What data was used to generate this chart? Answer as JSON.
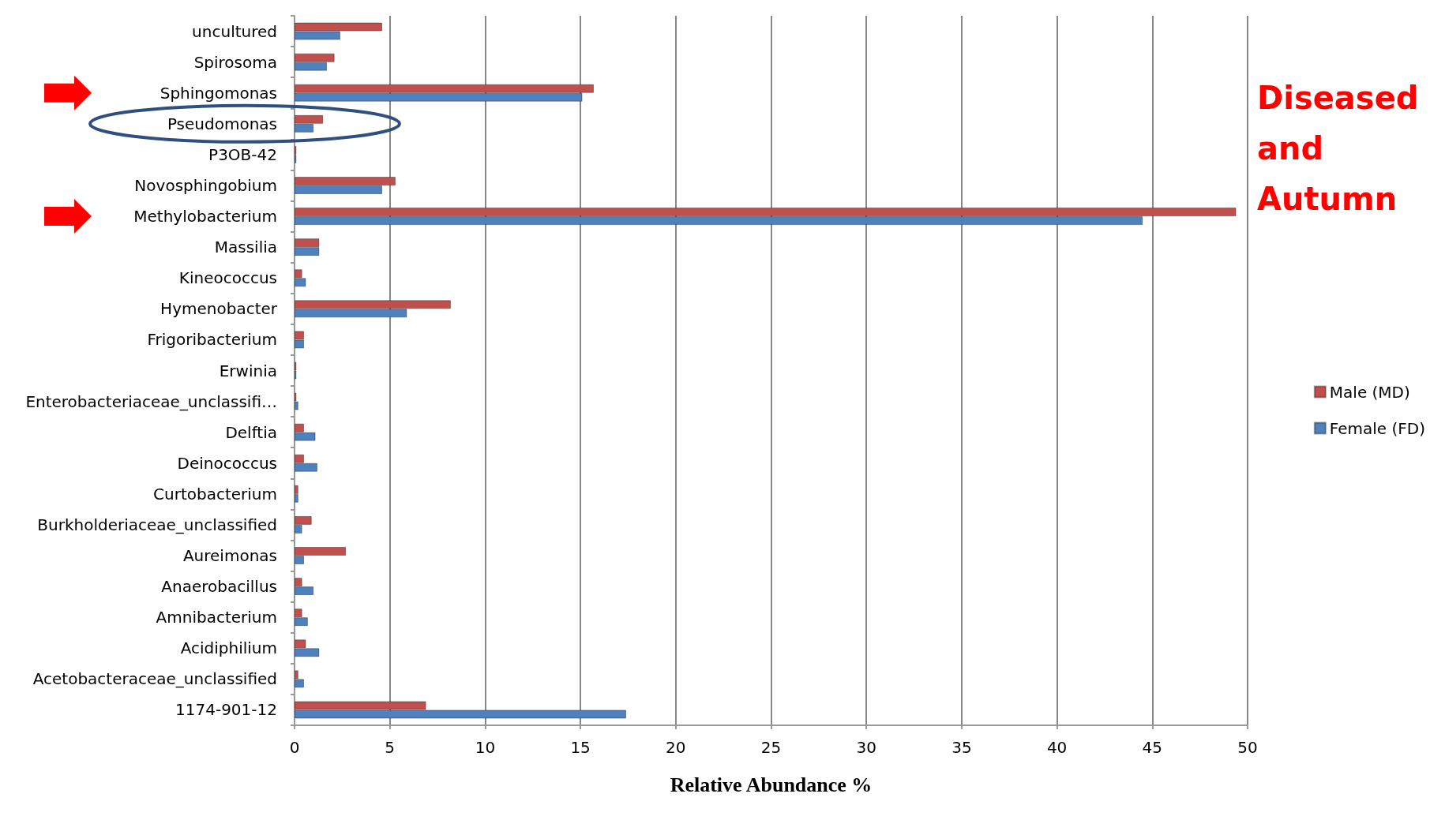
{
  "chart_data": {
    "type": "bar",
    "orientation": "horizontal",
    "xlabel": "Relative Abundance %",
    "categories": [
      "uncultured",
      "Spirosoma",
      "Sphingomonas",
      "Pseudomonas",
      "P3OB-42",
      "Novosphingobium",
      "Methylobacterium",
      "Massilia",
      "Kineococcus",
      "Hymenobacter",
      "Frigoribacterium",
      "Erwinia",
      "Enterobacteriaceae_unclassifi…",
      "Delftia",
      "Deinococcus",
      "Curtobacterium",
      "Burkholderiaceae_unclassified",
      "Aureimonas",
      "Anaerobacillus",
      "Amnibacterium",
      "Acidiphilium",
      "Acetobacteraceae_unclassified",
      "1174-901-12"
    ],
    "series": [
      {
        "name": "Male (MD)",
        "color": "#c0504d",
        "values": [
          4.6,
          2.1,
          15.7,
          1.5,
          0.1,
          5.3,
          49.4,
          1.3,
          0.4,
          8.2,
          0.5,
          0.1,
          0.1,
          0.5,
          0.5,
          0.2,
          0.9,
          2.7,
          0.4,
          0.4,
          0.6,
          0.2,
          6.9
        ]
      },
      {
        "name": "Female (FD)",
        "color": "#4f81bd",
        "values": [
          2.4,
          1.7,
          15.1,
          1.0,
          0.1,
          4.6,
          44.5,
          1.3,
          0.6,
          5.9,
          0.5,
          0.1,
          0.2,
          1.1,
          1.2,
          0.2,
          0.4,
          0.5,
          1.0,
          0.7,
          1.3,
          0.5,
          17.4
        ]
      }
    ],
    "xlim": [
      0,
      50
    ],
    "xticks": [
      0,
      5,
      10,
      15,
      20,
      25,
      30,
      35,
      40,
      45,
      50
    ],
    "grid": "x",
    "legend": "right",
    "annotations": [
      "Diseased and Autumn"
    ]
  }
}
